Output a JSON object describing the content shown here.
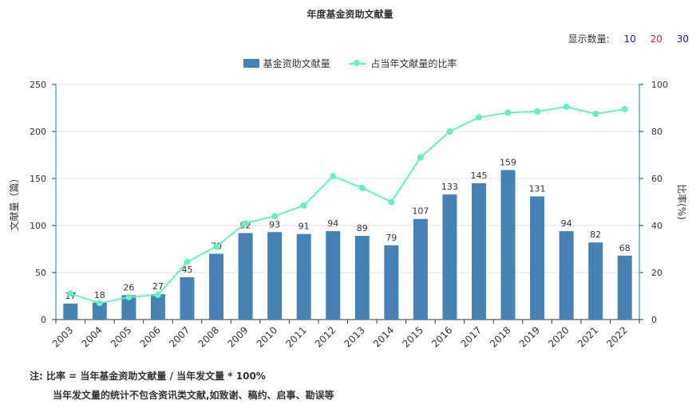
{
  "title": "年度基金资助文献量",
  "show_count": {
    "label": "显示数量:",
    "options": [
      {
        "label": "10",
        "color": "#1a1aa6"
      },
      {
        "label": "20",
        "color": "#d42a2a"
      },
      {
        "label": "30",
        "color": "#1a1aa6"
      }
    ]
  },
  "notes": {
    "line1": "注:  比率 = 当年基金资助文献量 / 当年发文量 * 100%",
    "line2": "当年发文量的统计不包含资讯类文献,如致谢、稿约、启事、勘误等"
  },
  "chart_data": {
    "type": "bar",
    "categories": [
      "2003",
      "2004",
      "2005",
      "2006",
      "2007",
      "2008",
      "2009",
      "2010",
      "2011",
      "2012",
      "2013",
      "2014",
      "2015",
      "2016",
      "2017",
      "2018",
      "2019",
      "2020",
      "2021",
      "2022"
    ],
    "series": [
      {
        "name": "基金资助文献量",
        "type": "bar",
        "axis": "left",
        "color": "#4682b4",
        "values": [
          17,
          18,
          26,
          27,
          45,
          70,
          92,
          93,
          91,
          94,
          89,
          79,
          107,
          133,
          145,
          159,
          131,
          94,
          82,
          68
        ]
      },
      {
        "name": "占当年文献量的比率",
        "type": "line",
        "axis": "right",
        "color": "#66efc2",
        "values": [
          11,
          7,
          9.5,
          10.5,
          24.5,
          31,
          41,
          44,
          48.5,
          61,
          56,
          50,
          69,
          80,
          86,
          88,
          88.5,
          90.5,
          87.5,
          89.5
        ]
      }
    ],
    "ylabel_left": "文献量（篇）",
    "ylabel_right": "比率(%)",
    "ylim_left": [
      0,
      250
    ],
    "ylim_right": [
      0,
      100
    ],
    "yticks_left": [
      0,
      50,
      100,
      150,
      200,
      250
    ],
    "yticks_right": [
      0,
      20,
      40,
      60,
      80,
      100
    ],
    "grid": true,
    "legend_position": "top-center",
    "data_labels": true
  }
}
